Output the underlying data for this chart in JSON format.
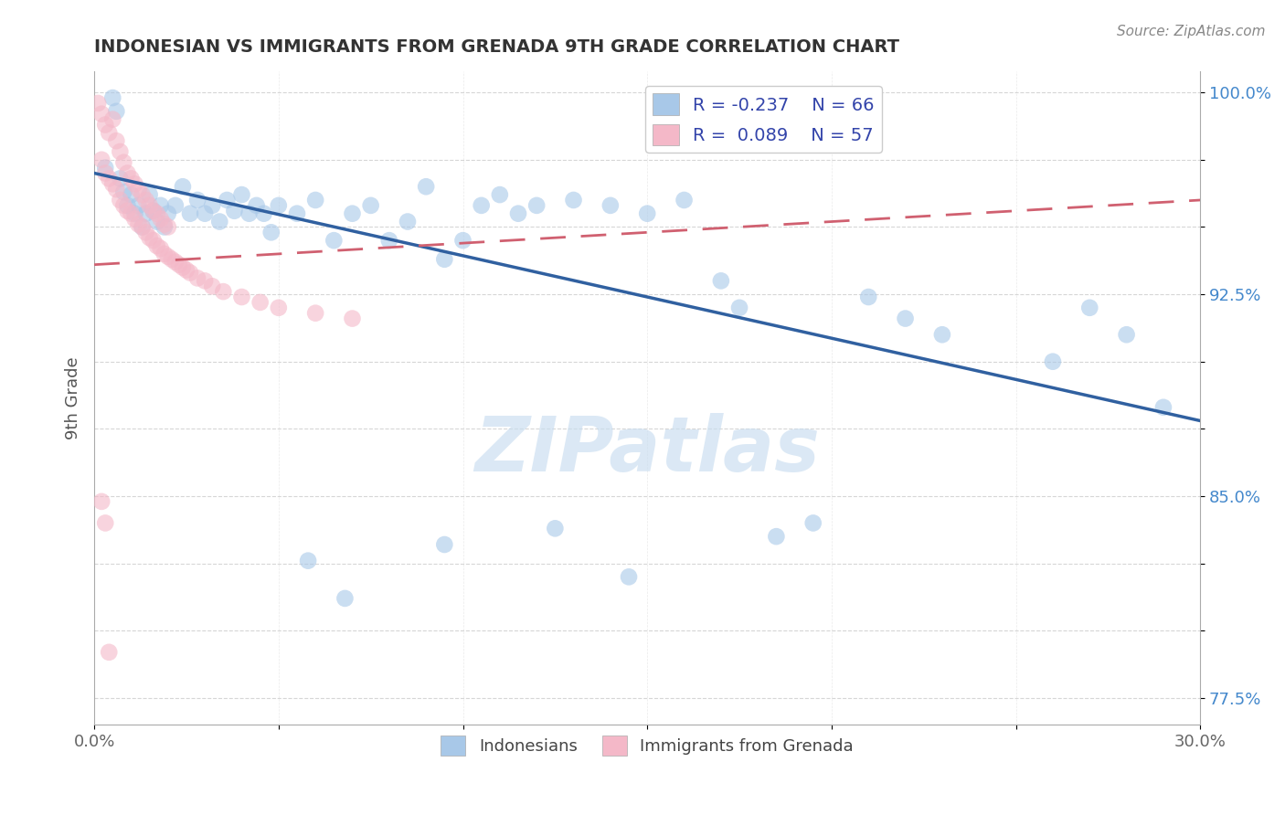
{
  "title": "INDONESIAN VS IMMIGRANTS FROM GRENADA 9TH GRADE CORRELATION CHART",
  "source_text": "Source: ZipAtlas.com",
  "ylabel": "9th Grade",
  "xlim": [
    0.0,
    0.3
  ],
  "ylim": [
    0.765,
    1.008
  ],
  "blue_color": "#a8c8e8",
  "pink_color": "#f4b8c8",
  "blue_line_color": "#3060a0",
  "pink_line_color": "#d06070",
  "watermark": "ZIPatlas",
  "blue_line_x0": 0.0,
  "blue_line_y0": 0.97,
  "blue_line_x1": 0.3,
  "blue_line_y1": 0.878,
  "pink_line_x0": 0.0,
  "pink_line_y0": 0.936,
  "pink_line_x1": 0.3,
  "pink_line_y1": 0.96,
  "blue_scatter_x": [
    0.003,
    0.005,
    0.006,
    0.007,
    0.008,
    0.009,
    0.01,
    0.011,
    0.012,
    0.013,
    0.014,
    0.015,
    0.016,
    0.017,
    0.018,
    0.019,
    0.02,
    0.022,
    0.024,
    0.026,
    0.028,
    0.03,
    0.032,
    0.034,
    0.036,
    0.038,
    0.04,
    0.042,
    0.044,
    0.046,
    0.048,
    0.05,
    0.055,
    0.06,
    0.065,
    0.07,
    0.075,
    0.08,
    0.085,
    0.09,
    0.095,
    0.1,
    0.105,
    0.11,
    0.115,
    0.12,
    0.13,
    0.14,
    0.15,
    0.16,
    0.175,
    0.185,
    0.195,
    0.21,
    0.22,
    0.23,
    0.26,
    0.27,
    0.28,
    0.29,
    0.17,
    0.145,
    0.125,
    0.095,
    0.068,
    0.058
  ],
  "blue_scatter_y": [
    0.972,
    0.998,
    0.993,
    0.968,
    0.963,
    0.958,
    0.962,
    0.955,
    0.958,
    0.95,
    0.955,
    0.962,
    0.956,
    0.952,
    0.958,
    0.95,
    0.955,
    0.958,
    0.965,
    0.955,
    0.96,
    0.955,
    0.958,
    0.952,
    0.96,
    0.956,
    0.962,
    0.955,
    0.958,
    0.955,
    0.948,
    0.958,
    0.955,
    0.96,
    0.945,
    0.955,
    0.958,
    0.945,
    0.952,
    0.965,
    0.938,
    0.945,
    0.958,
    0.962,
    0.955,
    0.958,
    0.96,
    0.958,
    0.955,
    0.96,
    0.92,
    0.835,
    0.84,
    0.924,
    0.916,
    0.91,
    0.9,
    0.92,
    0.91,
    0.883,
    0.93,
    0.82,
    0.838,
    0.832,
    0.812,
    0.826
  ],
  "pink_scatter_x": [
    0.001,
    0.002,
    0.003,
    0.004,
    0.005,
    0.006,
    0.007,
    0.008,
    0.009,
    0.01,
    0.011,
    0.012,
    0.013,
    0.014,
    0.015,
    0.016,
    0.017,
    0.018,
    0.019,
    0.02,
    0.002,
    0.003,
    0.004,
    0.005,
    0.006,
    0.007,
    0.008,
    0.009,
    0.01,
    0.011,
    0.012,
    0.013,
    0.014,
    0.015,
    0.016,
    0.017,
    0.018,
    0.019,
    0.02,
    0.021,
    0.022,
    0.023,
    0.024,
    0.025,
    0.026,
    0.028,
    0.03,
    0.032,
    0.035,
    0.04,
    0.045,
    0.05,
    0.06,
    0.07,
    0.002,
    0.003,
    0.004
  ],
  "pink_scatter_y": [
    0.996,
    0.992,
    0.988,
    0.985,
    0.99,
    0.982,
    0.978,
    0.974,
    0.97,
    0.968,
    0.966,
    0.964,
    0.962,
    0.96,
    0.958,
    0.956,
    0.955,
    0.953,
    0.951,
    0.95,
    0.975,
    0.97,
    0.968,
    0.966,
    0.964,
    0.96,
    0.958,
    0.956,
    0.955,
    0.953,
    0.951,
    0.95,
    0.948,
    0.946,
    0.945,
    0.943,
    0.942,
    0.94,
    0.939,
    0.938,
    0.937,
    0.936,
    0.935,
    0.934,
    0.933,
    0.931,
    0.93,
    0.928,
    0.926,
    0.924,
    0.922,
    0.92,
    0.918,
    0.916,
    0.848,
    0.84,
    0.792
  ]
}
